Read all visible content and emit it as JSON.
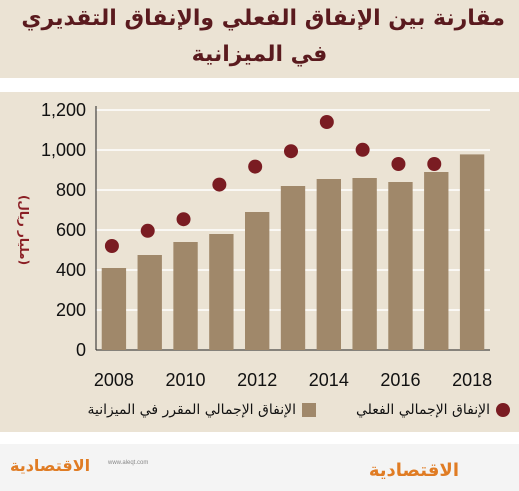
{
  "header": {
    "title_line1": "مقارنة بين الإنفاق الفعلي والإنفاق التقديري",
    "title_line2": "في الميزانية"
  },
  "legend": {
    "bars": "الإنفاق الإجمالي المقرر في الميزانية",
    "dots": "الإنفاق الإجمالي الفعلي"
  },
  "footer": {
    "brand": "الاقتصادية",
    "url": "www.aleqt.com"
  },
  "colors": {
    "bar": "#a0886a",
    "dot": "#7a1c22",
    "panel": "#ebe3d4",
    "title": "#5a1a1e",
    "grid": "#ffffff"
  },
  "chart_data": {
    "type": "bar",
    "ylabel": "(مليار ريال)",
    "ylim": [
      0,
      1200
    ],
    "yticks": [
      "0",
      "200",
      "400",
      "600",
      "800",
      "1,000",
      "1,200"
    ],
    "xticks": [
      "2008",
      "2010",
      "2012",
      "2014",
      "2016",
      "2018"
    ],
    "categories": [
      "2008",
      "2009",
      "2010",
      "2011",
      "2012",
      "2013",
      "2014",
      "2015",
      "2016",
      "2017",
      "2018"
    ],
    "series": [
      {
        "name": "الإنفاق الإجمالي المقرر في الميزانية",
        "kind": "bar",
        "values": [
          410,
          475,
          540,
          580,
          690,
          820,
          855,
          860,
          840,
          890,
          978
        ]
      },
      {
        "name": "الإنفاق الإجمالي الفعلي",
        "kind": "dot",
        "values": [
          520,
          596,
          654,
          827,
          917,
          994,
          1140,
          1001,
          930,
          930,
          null
        ]
      }
    ],
    "grid": "horizontal"
  }
}
